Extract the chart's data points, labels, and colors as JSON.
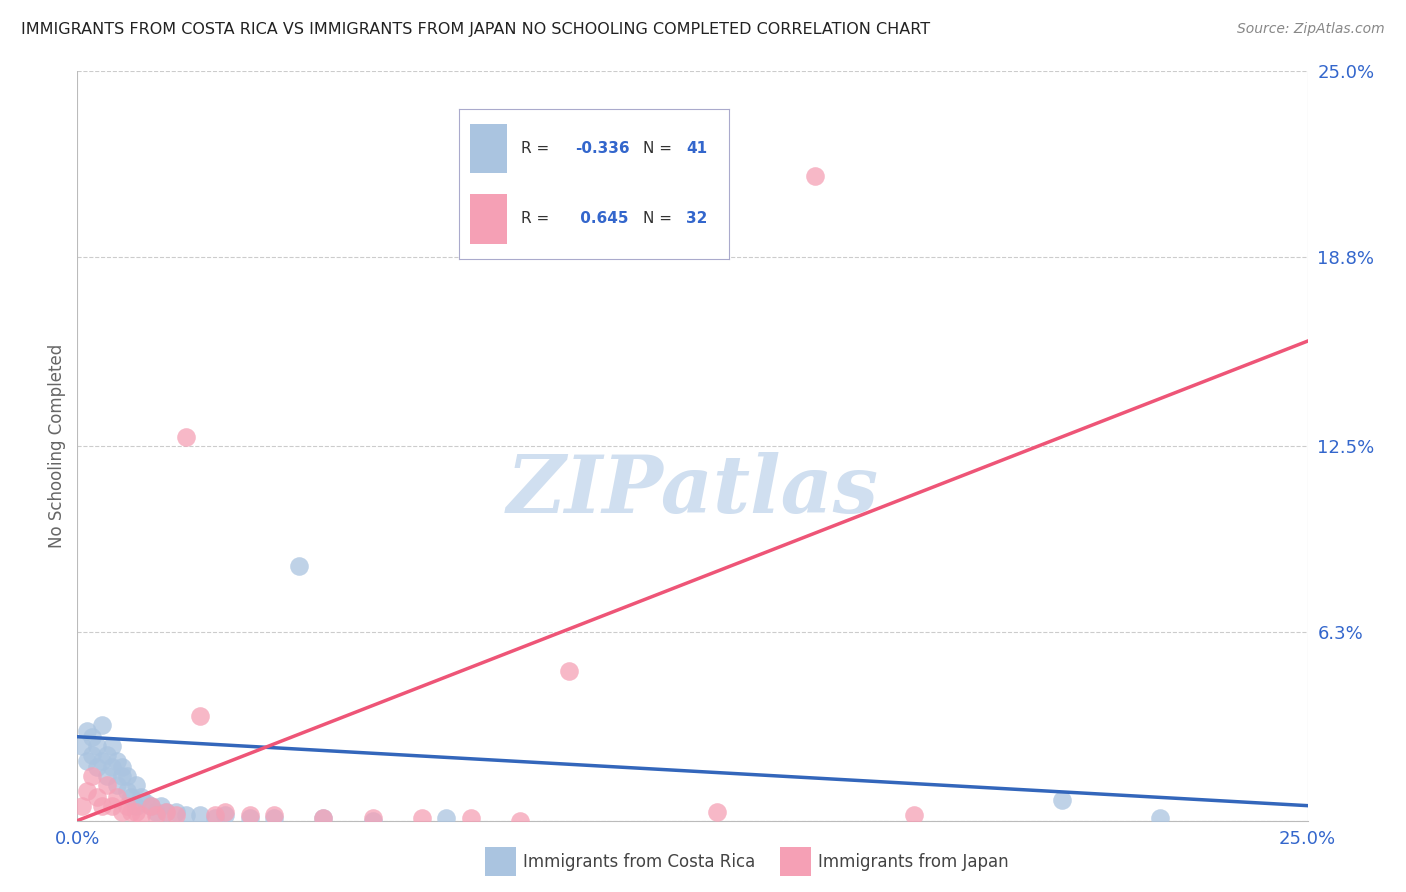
{
  "title": "IMMIGRANTS FROM COSTA RICA VS IMMIGRANTS FROM JAPAN NO SCHOOLING COMPLETED CORRELATION CHART",
  "source": "Source: ZipAtlas.com",
  "ylabel": "No Schooling Completed",
  "background_color": "#ffffff",
  "costa_rica_color": "#aac4e0",
  "japan_color": "#f5a0b5",
  "trendline_costa_rica_color": "#3366bb",
  "trendline_japan_color": "#ee5577",
  "legend_box_color": "#f0f4fa",
  "legend_border_color": "#aaaacc",
  "grid_color": "#cccccc",
  "tick_label_color": "#3366cc",
  "ylabel_color": "#666666",
  "title_color": "#222222",
  "source_color": "#888888",
  "watermark_color": "#d0dff0",
  "xlim": [
    0.0,
    0.25
  ],
  "ylim": [
    0.0,
    0.25
  ],
  "ytick_positions": [
    0.0,
    0.063,
    0.125,
    0.188,
    0.25
  ],
  "ytick_labels": [
    "",
    "6.3%",
    "12.5%",
    "18.8%",
    "25.0%"
  ],
  "xtick_positions": [
    0.0,
    0.25
  ],
  "xtick_labels": [
    "0.0%",
    "25.0%"
  ],
  "cr_x": [
    0.001,
    0.002,
    0.002,
    0.003,
    0.003,
    0.004,
    0.004,
    0.005,
    0.005,
    0.006,
    0.006,
    0.007,
    0.007,
    0.008,
    0.008,
    0.009,
    0.009,
    0.01,
    0.01,
    0.011,
    0.012,
    0.012,
    0.013,
    0.014,
    0.015,
    0.016,
    0.017,
    0.018,
    0.02,
    0.022,
    0.025,
    0.028,
    0.03,
    0.035,
    0.04,
    0.05,
    0.06,
    0.045,
    0.075,
    0.2,
    0.22
  ],
  "cr_y": [
    0.025,
    0.03,
    0.02,
    0.028,
    0.022,
    0.018,
    0.025,
    0.02,
    0.032,
    0.015,
    0.022,
    0.018,
    0.025,
    0.012,
    0.02,
    0.015,
    0.018,
    0.01,
    0.015,
    0.008,
    0.012,
    0.005,
    0.008,
    0.006,
    0.005,
    0.003,
    0.005,
    0.003,
    0.003,
    0.002,
    0.002,
    0.001,
    0.002,
    0.001,
    0.001,
    0.001,
    0.0,
    0.085,
    0.001,
    0.007,
    0.001
  ],
  "jp_x": [
    0.001,
    0.002,
    0.003,
    0.004,
    0.005,
    0.006,
    0.007,
    0.008,
    0.009,
    0.01,
    0.011,
    0.012,
    0.013,
    0.015,
    0.016,
    0.018,
    0.02,
    0.022,
    0.025,
    0.028,
    0.03,
    0.035,
    0.04,
    0.05,
    0.06,
    0.07,
    0.08,
    0.09,
    0.1,
    0.13,
    0.15,
    0.17
  ],
  "jp_y": [
    0.005,
    0.01,
    0.015,
    0.008,
    0.005,
    0.012,
    0.005,
    0.008,
    0.003,
    0.005,
    0.003,
    0.003,
    0.002,
    0.005,
    0.002,
    0.003,
    0.002,
    0.128,
    0.035,
    0.002,
    0.003,
    0.002,
    0.002,
    0.001,
    0.001,
    0.001,
    0.001,
    0.0,
    0.05,
    0.003,
    0.215,
    0.002
  ],
  "cr_trend_x": [
    0.0,
    0.25
  ],
  "cr_trend_y": [
    0.028,
    0.005
  ],
  "jp_trend_x": [
    0.0,
    0.25
  ],
  "jp_trend_y": [
    0.0,
    0.16
  ]
}
